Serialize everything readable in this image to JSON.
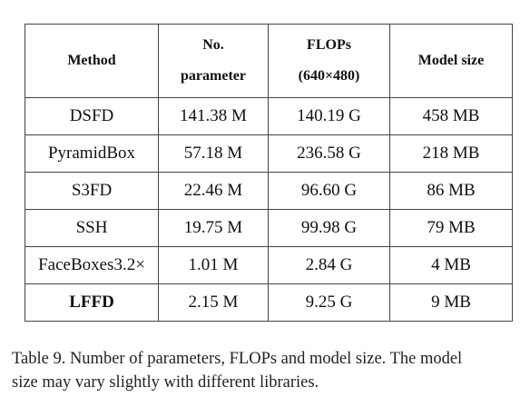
{
  "table": {
    "headers": {
      "method": "Method",
      "params_line1": "No.",
      "params_line2": "parameter",
      "flops_line1": "FLOPs",
      "flops_line2": "(640×480)",
      "model_size": "Model size"
    },
    "rows": [
      {
        "method": "DSFD",
        "params": "141.38 M",
        "flops": "140.19 G",
        "size": "458 MB",
        "bold": false
      },
      {
        "method": "PyramidBox",
        "params": "57.18 M",
        "flops": "236.58 G",
        "size": "218 MB",
        "bold": false
      },
      {
        "method": "S3FD",
        "params": "22.46 M",
        "flops": "96.60 G",
        "size": "86 MB",
        "bold": false
      },
      {
        "method": "SSH",
        "params": "19.75 M",
        "flops": "99.98 G",
        "size": "79 MB",
        "bold": false
      },
      {
        "method": "FaceBoxes3.2×",
        "params": "1.01 M",
        "flops": "2.84 G",
        "size": "4 MB",
        "bold": false
      },
      {
        "method": "LFFD",
        "params": "2.15 M",
        "flops": "9.25 G",
        "size": "9 MB",
        "bold": true
      }
    ]
  },
  "caption": {
    "line1": "Table 9. Number of parameters, FLOPs and model size. The model",
    "line2": "size may vary slightly with different libraries."
  }
}
